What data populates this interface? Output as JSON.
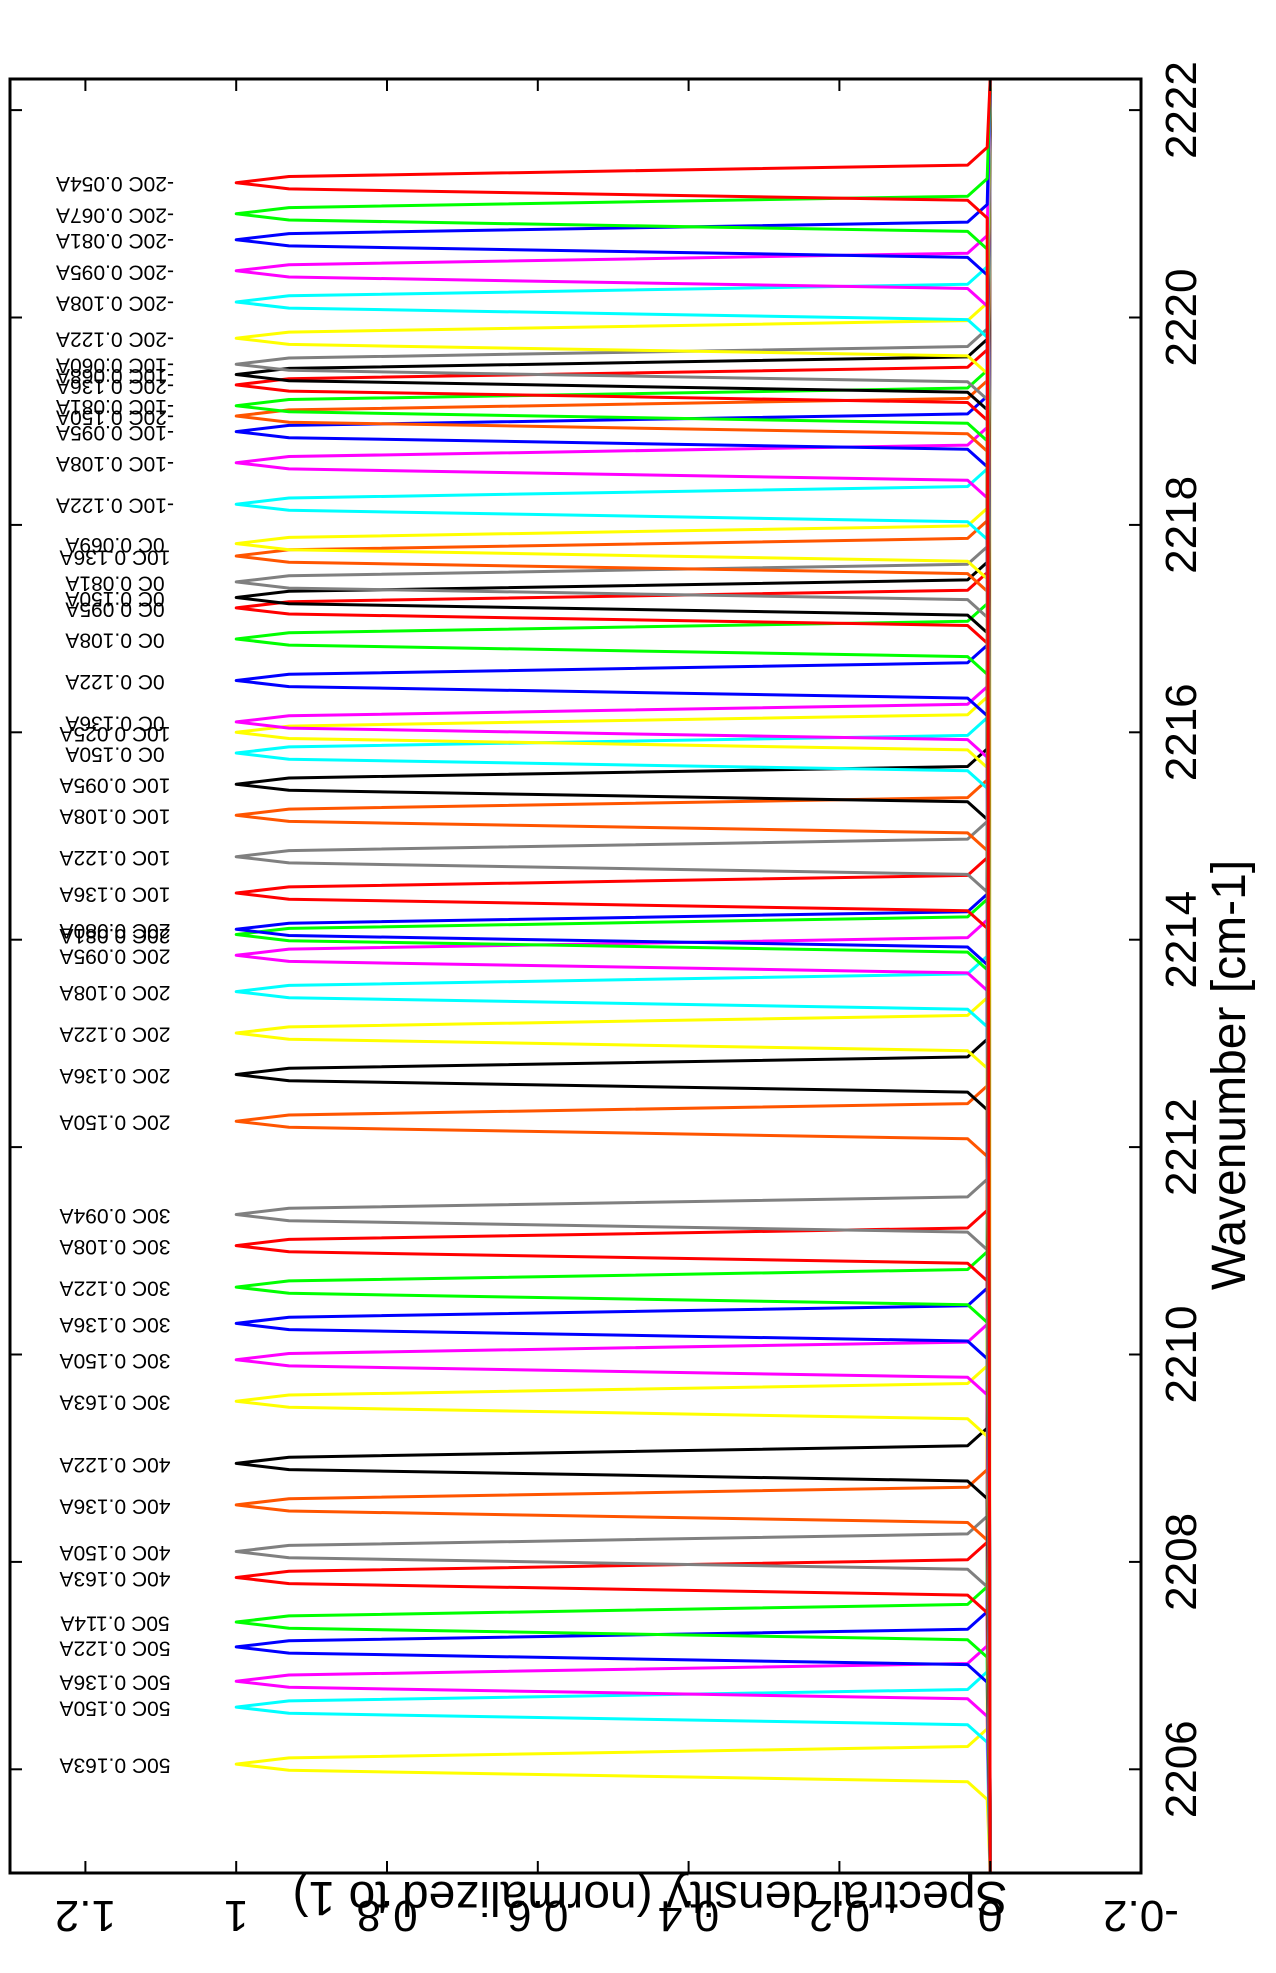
{
  "chart_data": {
    "type": "line",
    "orientation": "rotated-90-clockwise",
    "xlabel": "Wavenumber [cm-1]",
    "ylabel": "Spectral density (normalized to 1)",
    "xlim": [
      2205,
      2222.3
    ],
    "ylim": [
      -0.2,
      1.3
    ],
    "xticks": [
      "2206",
      "2208",
      "2210",
      "2212",
      "2214",
      "2216",
      "2218",
      "2220",
      "2222"
    ],
    "yticks": [
      "-0.2",
      "0",
      "0.2",
      "0.4",
      "0.6",
      "0.8",
      "1",
      "1.2"
    ],
    "peak_height": 1,
    "peaks": [
      {
        "label": "50C 0.163A",
        "center": 2206.05,
        "color": "#ffff00"
      },
      {
        "label": "50C 0.150A",
        "center": 2206.6,
        "color": "#00ffff"
      },
      {
        "label": "50C 0.136A",
        "center": 2206.85,
        "color": "#ff00ff"
      },
      {
        "label": "50C 0.122A",
        "center": 2207.18,
        "color": "#0000ff"
      },
      {
        "label": "50C 0.114A",
        "center": 2207.42,
        "color": "#00ff00"
      },
      {
        "label": "40C 0.163A",
        "center": 2207.85,
        "color": "#ff0000"
      },
      {
        "label": "40C 0.150A",
        "center": 2208.1,
        "color": "#808080"
      },
      {
        "label": "40C 0.136A",
        "center": 2208.55,
        "color": "#ff5500"
      },
      {
        "label": "40C 0.122A",
        "center": 2208.95,
        "color": "#000000"
      },
      {
        "label": "30C 0.163A",
        "center": 2209.55,
        "color": "#ffff00"
      },
      {
        "label": "30C 0.150A",
        "center": 2209.95,
        "color": "#ff00ff"
      },
      {
        "label": "30C 0.136A",
        "center": 2210.3,
        "color": "#0000ff"
      },
      {
        "label": "30C 0.122A",
        "center": 2210.65,
        "color": "#00ff00"
      },
      {
        "label": "30C 0.108A",
        "center": 2211.05,
        "color": "#ff0000"
      },
      {
        "label": "30C 0.094A",
        "center": 2211.35,
        "color": "#808080"
      },
      {
        "label": "20C 0.150A",
        "center": 2212.25,
        "color": "#ff5500"
      },
      {
        "label": "20C 0.136A",
        "center": 2212.7,
        "color": "#000000"
      },
      {
        "label": "20C 0.122A",
        "center": 2213.1,
        "color": "#ffff00"
      },
      {
        "label": "20C 0.108A",
        "center": 2213.5,
        "color": "#00ffff"
      },
      {
        "label": "20C 0.095A",
        "center": 2213.85,
        "color": "#ff00ff"
      },
      {
        "label": "20C 0.081A",
        "center": 2214.05,
        "color": "#00ff00"
      },
      {
        "label": "20C 0.080A",
        "center": 2214.1,
        "color": "#0000ff"
      },
      {
        "label": "10C 0.136A",
        "center": 2214.45,
        "color": "#ff0000"
      },
      {
        "label": "10C 0.122A",
        "center": 2214.8,
        "color": "#808080"
      },
      {
        "label": "10C 0.108A",
        "center": 2215.2,
        "color": "#ff5500"
      },
      {
        "label": "10C 0.095A",
        "center": 2215.5,
        "color": "#000000"
      },
      {
        "label": "0C 0.150A",
        "center": 2215.8,
        "color": "#00ffff"
      },
      {
        "label": "10C 0.025A",
        "center": 2216.0,
        "color": "#ffff00"
      },
      {
        "label": "0C 0.136A",
        "center": 2216.1,
        "color": "#ff00ff"
      },
      {
        "label": "0C 0.122A",
        "center": 2216.5,
        "color": "#0000ff"
      },
      {
        "label": "0C 0.108A",
        "center": 2216.9,
        "color": "#00ff00"
      },
      {
        "label": "0C 0.095A",
        "center": 2217.2,
        "color": "#ff0000"
      },
      {
        "label": "0C 0.150A",
        "center": 2217.3,
        "color": "#000000"
      },
      {
        "label": "0C 0.081A",
        "center": 2217.45,
        "color": "#808080"
      },
      {
        "label": "10C 0.136A",
        "center": 2217.7,
        "color": "#ff5500"
      },
      {
        "label": "0C 0.069A",
        "center": 2217.82,
        "color": "#ffff00"
      },
      {
        "label": "-10C 0.122A",
        "center": 2218.2,
        "color": "#00ffff"
      },
      {
        "label": "-10C 0.108A",
        "center": 2218.6,
        "color": "#ff00ff"
      },
      {
        "label": "-10C 0.095A",
        "center": 2218.9,
        "color": "#0000ff"
      },
      {
        "label": "-20C 0.150A",
        "center": 2219.05,
        "color": "#ff5500"
      },
      {
        "label": "-10C 0.081A",
        "center": 2219.15,
        "color": "#00ff00"
      },
      {
        "label": "-20C 0.136A",
        "center": 2219.35,
        "color": "#ff0000"
      },
      {
        "label": "-10C 0.068A",
        "center": 2219.45,
        "color": "#000000"
      },
      {
        "label": "-10C 0.060A",
        "center": 2219.55,
        "color": "#808080"
      },
      {
        "label": "-20C 0.122A",
        "center": 2219.8,
        "color": "#ffff00"
      },
      {
        "label": "-20C 0.108A",
        "center": 2220.15,
        "color": "#00ffff"
      },
      {
        "label": "-20C 0.095A",
        "center": 2220.45,
        "color": "#ff00ff"
      },
      {
        "label": "-20C 0.081A",
        "center": 2220.75,
        "color": "#0000ff"
      },
      {
        "label": "-20C 0.067A",
        "center": 2221.0,
        "color": "#00ff00"
      },
      {
        "label": "-20C 0.054A",
        "center": 2221.3,
        "color": "#ff0000"
      }
    ]
  }
}
